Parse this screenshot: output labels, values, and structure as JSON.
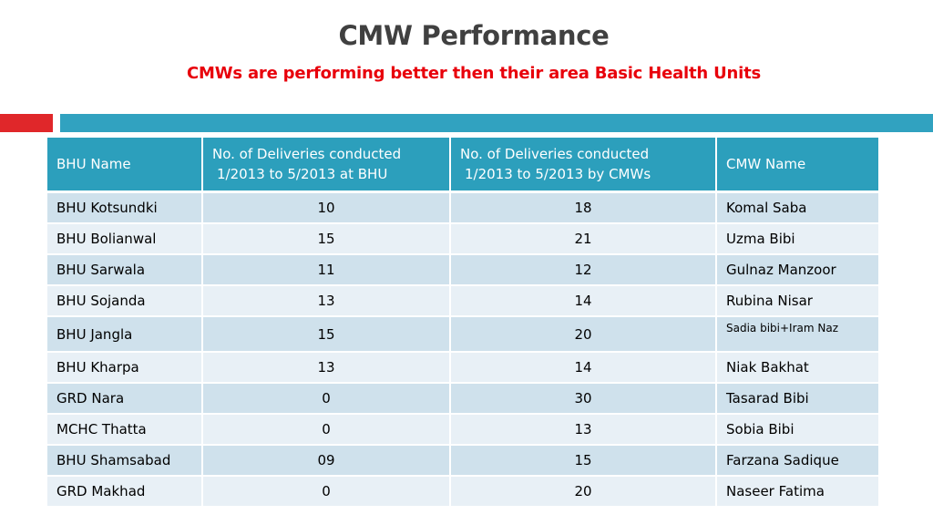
{
  "title": "CMW Performance",
  "subtitle": "CMWs are performing better then their area Basic Health Units",
  "colors": {
    "accent_red": "#e0272a",
    "accent_blue": "#31a2c0",
    "header_bg": "#2c9fbc",
    "row_dark": "#cfe1ec",
    "row_light": "#e8f0f6",
    "subtitle": "#e8000b"
  },
  "table": {
    "headers": {
      "bhu_name": "BHU Name",
      "bhu_deliveries_line1": "No. of Deliveries conducted",
      "bhu_deliveries_line2": "1/2013 to 5/2013 at BHU",
      "cmw_deliveries_line1": "No. of Deliveries conducted",
      "cmw_deliveries_line2": "1/2013 to 5/2013 by CMWs",
      "cmw_name": "CMW Name"
    },
    "rows": [
      {
        "bhu": "BHU Kotsundki",
        "at_bhu": "10",
        "by_cmw": "18",
        "cmw": "Komal Saba"
      },
      {
        "bhu": "BHU Bolianwal",
        "at_bhu": "15",
        "by_cmw": "21",
        "cmw": "Uzma Bibi"
      },
      {
        "bhu": "BHU Sarwala",
        "at_bhu": "11",
        "by_cmw": "12",
        "cmw": "Gulnaz Manzoor"
      },
      {
        "bhu": "BHU Sojanda",
        "at_bhu": "13",
        "by_cmw": "14",
        "cmw": "Rubina Nisar"
      },
      {
        "bhu": "BHU Jangla",
        "at_bhu": "15",
        "by_cmw": "20",
        "cmw": "Sadia bibi+Iram Naz"
      },
      {
        "bhu": "BHU Kharpa",
        "at_bhu": "13",
        "by_cmw": "14",
        "cmw": "Niak Bakhat"
      },
      {
        "bhu": "GRD Nara",
        "at_bhu": "0",
        "by_cmw": "30",
        "cmw": "Tasarad Bibi"
      },
      {
        "bhu": "MCHC Thatta",
        "at_bhu": "0",
        "by_cmw": "13",
        "cmw": "Sobia Bibi"
      },
      {
        "bhu": "BHU Shamsabad",
        "at_bhu": "09",
        "by_cmw": "15",
        "cmw": "Farzana Sadique"
      },
      {
        "bhu": "GRD Makhad",
        "at_bhu": "0",
        "by_cmw": "20",
        "cmw": "Naseer Fatima"
      }
    ]
  }
}
